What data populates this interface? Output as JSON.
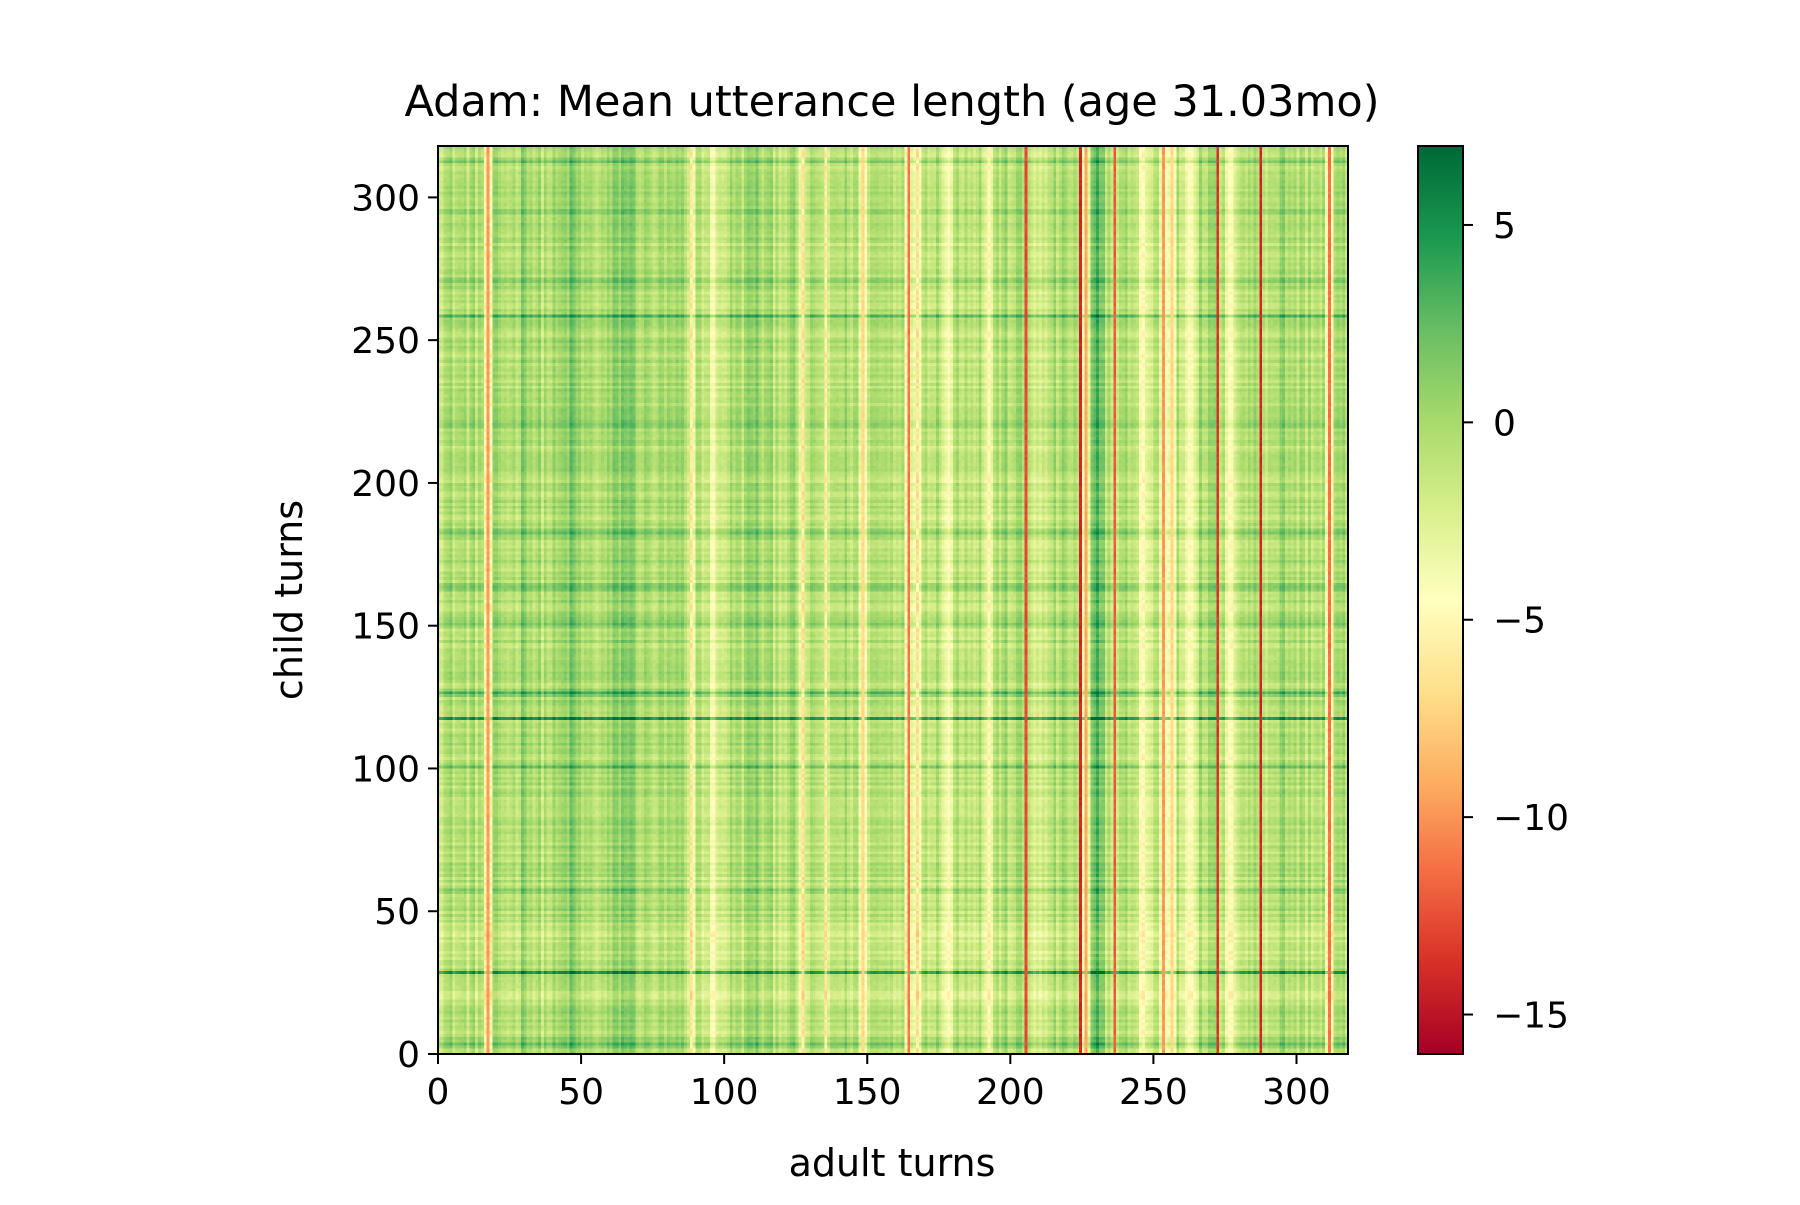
{
  "chart_data": {
    "type": "heatmap",
    "title": "Adam: Mean utterance length (age 31.03mo)",
    "xlabel": "adult turns",
    "ylabel": "child turns",
    "xlim": [
      0,
      318
    ],
    "ylim": [
      0,
      318
    ],
    "n_cols": 318,
    "n_rows": 318,
    "xticks": [
      0,
      50,
      100,
      150,
      200,
      250,
      300
    ],
    "yticks": [
      0,
      50,
      100,
      150,
      200,
      250,
      300
    ],
    "xtick_labels": [
      "0",
      "50",
      "100",
      "150",
      "200",
      "250",
      "300"
    ],
    "ytick_labels": [
      "0",
      "50",
      "100",
      "150",
      "200",
      "250",
      "300"
    ],
    "colormap": "RdYlGn",
    "colormap_stops": [
      "#a50026",
      "#d73027",
      "#f46d43",
      "#fdae61",
      "#fee08b",
      "#ffffbf",
      "#d9ef8b",
      "#a6d96a",
      "#66bd63",
      "#1a9850",
      "#006837"
    ],
    "value_range": [
      -16,
      7
    ],
    "colorbar_ticks": [
      5,
      0,
      -5,
      -10,
      -15
    ],
    "colorbar_tick_labels": [
      "5",
      "0",
      "−5",
      "−10",
      "−15"
    ],
    "grid": false,
    "column_effects": [
      {
        "center": 17,
        "width": 1.2,
        "value": -11
      },
      {
        "center": 30,
        "width": 2.5,
        "value": 2
      },
      {
        "center": 46,
        "width": 4,
        "value": 1.8
      },
      {
        "center": 65,
        "width": 6,
        "value": 2.2
      },
      {
        "center": 88,
        "width": 1,
        "value": -6.5
      },
      {
        "center": 96,
        "width": 4,
        "value": -3
      },
      {
        "center": 110,
        "width": 3,
        "value": 1.5
      },
      {
        "center": 127,
        "width": 1,
        "value": -7
      },
      {
        "center": 135,
        "width": 1,
        "value": -6
      },
      {
        "center": 148,
        "width": 1,
        "value": -8
      },
      {
        "center": 164,
        "width": 1,
        "value": -10
      },
      {
        "center": 167,
        "width": 1,
        "value": -7
      },
      {
        "center": 178,
        "width": 2,
        "value": -4
      },
      {
        "center": 192,
        "width": 2,
        "value": -4
      },
      {
        "center": 205,
        "width": 0.9,
        "value": -13
      },
      {
        "center": 210,
        "width": 3,
        "value": -2.5
      },
      {
        "center": 224,
        "width": 0.8,
        "value": -15
      },
      {
        "center": 226,
        "width": 1,
        "value": -10
      },
      {
        "center": 230,
        "width": 3,
        "value": 3
      },
      {
        "center": 236,
        "width": 0.8,
        "value": -13
      },
      {
        "center": 246,
        "width": 4,
        "value": -3.5
      },
      {
        "center": 253,
        "width": 1,
        "value": -10
      },
      {
        "center": 256,
        "width": 1,
        "value": -8
      },
      {
        "center": 262,
        "width": 3,
        "value": -3.5
      },
      {
        "center": 272,
        "width": 0.9,
        "value": -13
      },
      {
        "center": 276,
        "width": 2,
        "value": -5
      },
      {
        "center": 287,
        "width": 0.9,
        "value": -14
      },
      {
        "center": 295,
        "width": 4,
        "value": 0.8
      },
      {
        "center": 311,
        "width": 1,
        "value": -12
      }
    ],
    "row_effects": [
      {
        "center": 3,
        "width": 2,
        "value": 2
      },
      {
        "center": 20,
        "width": 6,
        "value": -1.5
      },
      {
        "center": 28,
        "width": 0.9,
        "value": 5
      },
      {
        "center": 35,
        "width": 2,
        "value": -1
      },
      {
        "center": 42,
        "width": 4,
        "value": -1.5
      },
      {
        "center": 57,
        "width": 1,
        "value": 2
      },
      {
        "center": 100,
        "width": 1,
        "value": 2
      },
      {
        "center": 117,
        "width": 0.9,
        "value": 6
      },
      {
        "center": 126,
        "width": 1.5,
        "value": 3
      },
      {
        "center": 150,
        "width": 1,
        "value": 2
      },
      {
        "center": 163,
        "width": 1,
        "value": 2.5
      },
      {
        "center": 182,
        "width": 1,
        "value": 2
      },
      {
        "center": 220,
        "width": 1,
        "value": 2.5
      },
      {
        "center": 258,
        "width": 0.9,
        "value": 3.5
      },
      {
        "center": 270,
        "width": 2,
        "value": 1.5
      },
      {
        "center": 295,
        "width": 1,
        "value": 2
      },
      {
        "center": 312,
        "width": 1,
        "value": 2
      }
    ]
  }
}
